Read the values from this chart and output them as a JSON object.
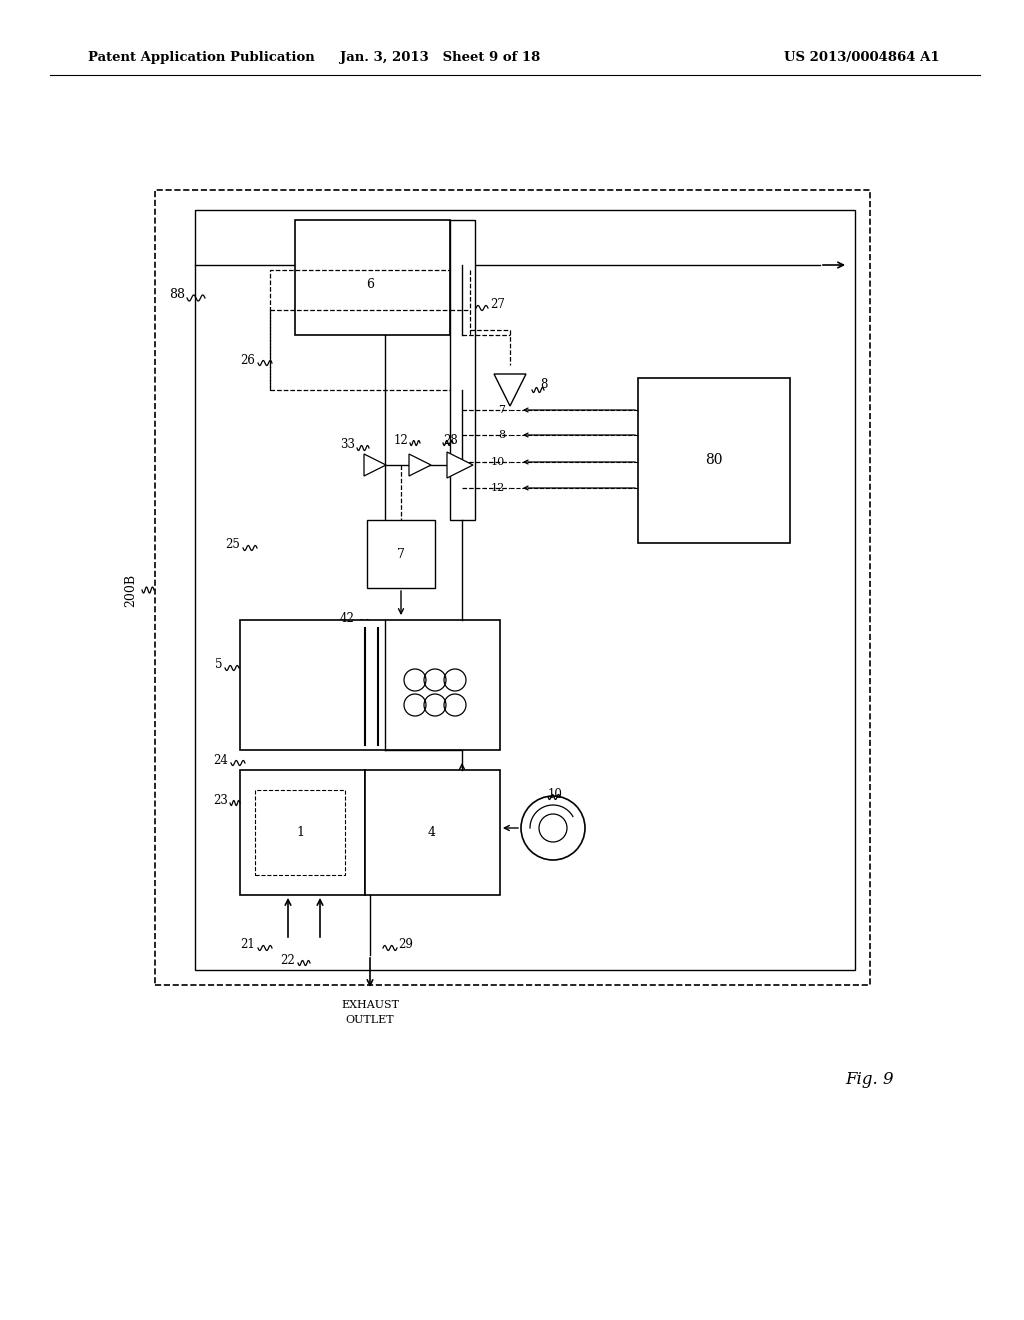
{
  "bg_color": "#ffffff",
  "header_left": "Patent Application Publication",
  "header_center": "Jan. 3, 2013   Sheet 9 of 18",
  "header_right": "US 2013/0004864 A1",
  "fig_label": "Fig. 9",
  "line_color": "#000000"
}
